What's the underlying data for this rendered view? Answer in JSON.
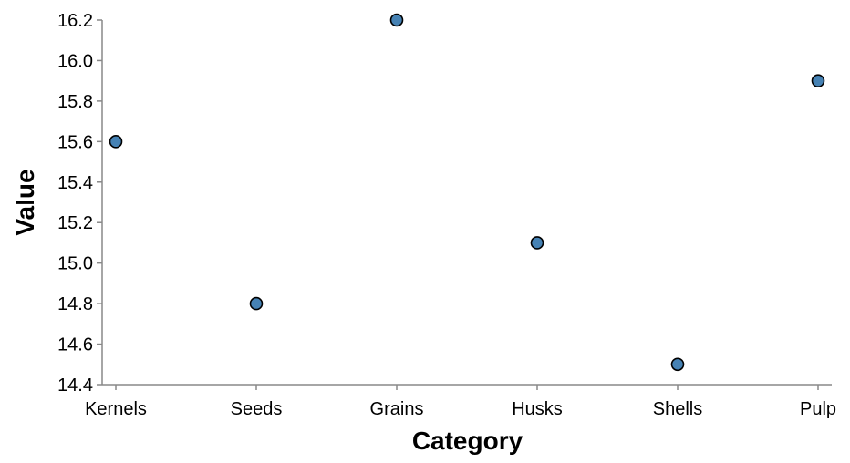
{
  "chart_data": {
    "type": "scatter",
    "title": "",
    "xlabel": "Category",
    "ylabel": "Value",
    "categories": [
      "Kernels",
      "Seeds",
      "Grains",
      "Husks",
      "Shells",
      "Pulp"
    ],
    "values": [
      15.6,
      14.8,
      16.2,
      15.1,
      14.5,
      15.9
    ],
    "ylim": [
      14.4,
      16.2
    ],
    "yticks": [
      "14.4",
      "14.6",
      "14.8",
      "15.0",
      "15.2",
      "15.4",
      "15.6",
      "15.8",
      "16.0",
      "16.2"
    ],
    "grid": false,
    "legend": "none",
    "colors": {
      "point_fill": "#4682b4",
      "point_stroke": "#000000",
      "axis": "#888888"
    }
  }
}
